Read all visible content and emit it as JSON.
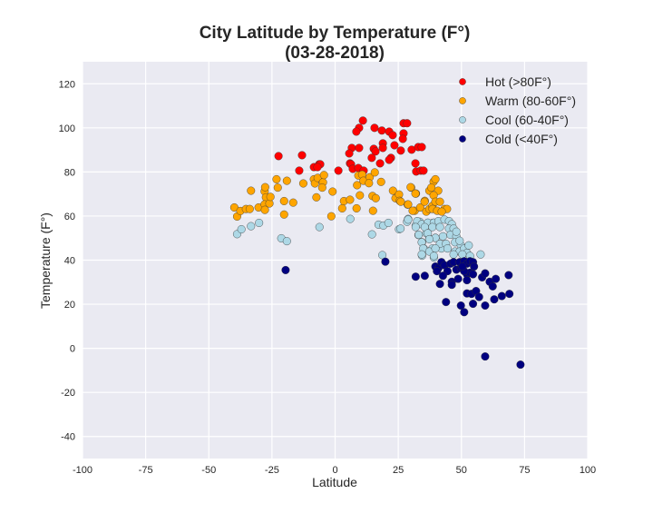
{
  "chart_data": {
    "type": "scatter",
    "title": "City Latitude by Temperature (F°)",
    "subtitle": "(03-28-2018)",
    "xlabel": "Latitude",
    "ylabel": "Temperature (F°)",
    "xlim": [
      -100,
      100
    ],
    "ylim": [
      -50,
      130
    ],
    "xticks": [
      -100,
      -75,
      -50,
      -25,
      0,
      25,
      50,
      75,
      100
    ],
    "yticks": [
      -40,
      -20,
      0,
      20,
      40,
      60,
      80,
      100,
      120
    ],
    "grid": true,
    "legend_position": "top-right",
    "series": [
      {
        "name": "Hot (>80F°)",
        "color": "#FF0000",
        "points": [
          [
            11.0,
            103.3
          ],
          [
            9.5,
            100.0
          ],
          [
            8.4,
            98.3
          ],
          [
            15.6,
            100.0
          ],
          [
            18.5,
            98.8
          ],
          [
            21.4,
            98.3
          ],
          [
            22.8,
            96.7
          ],
          [
            27.1,
            102.1
          ],
          [
            28.5,
            102.1
          ],
          [
            27.1,
            97.5
          ],
          [
            26.8,
            95.0
          ],
          [
            18.9,
            93.0
          ],
          [
            18.9,
            90.9
          ],
          [
            15.3,
            90.5
          ],
          [
            16.0,
            89.3
          ],
          [
            23.5,
            92.1
          ],
          [
            26.0,
            89.7
          ],
          [
            30.3,
            90.1
          ],
          [
            32.9,
            91.3
          ],
          [
            34.3,
            91.3
          ],
          [
            22.1,
            86.4
          ],
          [
            21.4,
            85.5
          ],
          [
            17.8,
            83.9
          ],
          [
            14.5,
            86.4
          ],
          [
            6.6,
            90.9
          ],
          [
            5.6,
            88.4
          ],
          [
            9.5,
            90.9
          ],
          [
            5.9,
            83.9
          ],
          [
            6.3,
            83.5
          ],
          [
            7.0,
            81.4
          ],
          [
            9.2,
            81.8
          ],
          [
            11.3,
            80.6
          ],
          [
            1.3,
            80.6
          ],
          [
            -6.3,
            83.5
          ],
          [
            -5.9,
            83.5
          ],
          [
            -8.4,
            82.2
          ],
          [
            -7.0,
            82.2
          ],
          [
            -14.2,
            80.6
          ],
          [
            -13.1,
            87.6
          ],
          [
            -22.4,
            87.2
          ],
          [
            31.8,
            83.9
          ],
          [
            32.1,
            80.2
          ],
          [
            33.9,
            80.6
          ],
          [
            35.0,
            80.6
          ]
        ]
      },
      {
        "name": "Warm (80-60F°)",
        "color": "#FFA500",
        "points": [
          [
            -39.9,
            63.9
          ],
          [
            -38.8,
            59.8
          ],
          [
            -37.5,
            62.3
          ],
          [
            -35.3,
            63.2
          ],
          [
            -33.8,
            63.2
          ],
          [
            -33.3,
            71.5
          ],
          [
            -30.3,
            63.9
          ],
          [
            -27.9,
            71.2
          ],
          [
            -27.7,
            73.1
          ],
          [
            -27.4,
            68.5
          ],
          [
            -27.9,
            65.3
          ],
          [
            -27.8,
            62.8
          ],
          [
            -26.0,
            65.7
          ],
          [
            -25.6,
            68.7
          ],
          [
            -23.2,
            76.7
          ],
          [
            -22.7,
            72.9
          ],
          [
            -20.2,
            66.8
          ],
          [
            -20.2,
            60.7
          ],
          [
            -19.1,
            76.0
          ],
          [
            -16.6,
            66.1
          ],
          [
            -12.6,
            74.8
          ],
          [
            -8.4,
            76.7
          ],
          [
            -8.0,
            74.8
          ],
          [
            -6.9,
            77.3
          ],
          [
            -4.8,
            75.3
          ],
          [
            -4.4,
            78.6
          ],
          [
            -5.1,
            72.9
          ],
          [
            -7.4,
            68.5
          ],
          [
            -1.0,
            71.1
          ],
          [
            -1.5,
            59.9
          ],
          [
            2.8,
            63.5
          ],
          [
            3.5,
            66.8
          ],
          [
            5.9,
            67.4
          ],
          [
            8.5,
            63.5
          ],
          [
            8.7,
            74.0
          ],
          [
            9.2,
            78.4
          ],
          [
            9.8,
            69.4
          ],
          [
            10.7,
            78.8
          ],
          [
            11.2,
            76.0
          ],
          [
            13.7,
            77.6
          ],
          [
            13.4,
            74.9
          ],
          [
            15.0,
            62.4
          ],
          [
            14.8,
            69.1
          ],
          [
            16.1,
            68.1
          ],
          [
            15.7,
            79.8
          ],
          [
            18.2,
            75.5
          ],
          [
            22.9,
            71.5
          ],
          [
            23.9,
            68.1
          ],
          [
            25.3,
            69.8
          ],
          [
            25.6,
            66.9
          ],
          [
            28.7,
            65.2
          ],
          [
            30.1,
            72.9
          ],
          [
            32.0,
            70.2
          ],
          [
            31.5,
            62.4
          ],
          [
            33.7,
            63.9
          ],
          [
            35.5,
            66.9
          ],
          [
            36.1,
            62.0
          ],
          [
            37.3,
            63.2
          ],
          [
            38.5,
            64.6
          ],
          [
            37.3,
            71.5
          ],
          [
            39.0,
            75.6
          ],
          [
            39.7,
            76.7
          ],
          [
            38.1,
            72.9
          ],
          [
            29.9,
            73.1
          ],
          [
            31.8,
            70.2
          ],
          [
            40.8,
            71.5
          ],
          [
            39.0,
            69.4
          ],
          [
            39.7,
            66.5
          ],
          [
            35.4,
            66.5
          ],
          [
            41.5,
            66.5
          ],
          [
            28.9,
            65.3
          ],
          [
            38.6,
            63.2
          ],
          [
            40.4,
            62.4
          ],
          [
            43.3,
            63.2
          ],
          [
            44.3,
            63.2
          ],
          [
            30.7,
            62.4
          ],
          [
            42.2,
            62.0
          ],
          [
            26.0,
            66.5
          ]
        ]
      },
      {
        "name": "Cool (60-40F°)",
        "color": "#ADD8E6",
        "points": [
          [
            -38.8,
            51.8
          ],
          [
            -37.1,
            54.0
          ],
          [
            -33.3,
            55.4
          ],
          [
            -30.1,
            56.9
          ],
          [
            -21.3,
            49.9
          ],
          [
            -19.1,
            48.6
          ],
          [
            -6.2,
            55.0
          ],
          [
            6.0,
            58.7
          ],
          [
            14.6,
            51.7
          ],
          [
            17.2,
            56.1
          ],
          [
            19.1,
            55.7
          ],
          [
            21.1,
            56.9
          ],
          [
            25.3,
            54.0
          ],
          [
            18.7,
            42.3
          ],
          [
            28.5,
            57.4
          ],
          [
            28.9,
            58.7
          ],
          [
            31.9,
            55.7
          ],
          [
            33.5,
            57.4
          ],
          [
            36.1,
            56.3
          ],
          [
            38.7,
            56.9
          ],
          [
            33.0,
            51.4
          ],
          [
            34.4,
            48.1
          ],
          [
            36.1,
            52.2
          ],
          [
            37.3,
            49.7
          ],
          [
            39.7,
            50.1
          ],
          [
            35.1,
            45.3
          ],
          [
            38.5,
            45.3
          ],
          [
            34.4,
            42.0
          ],
          [
            39.1,
            41.2
          ],
          [
            42.1,
            45.3
          ],
          [
            28.9,
            58.4
          ],
          [
            32.5,
            57.7
          ],
          [
            34.3,
            56.3
          ],
          [
            36.7,
            57.0
          ],
          [
            39.1,
            57.0
          ],
          [
            40.9,
            57.7
          ],
          [
            43.3,
            58.4
          ],
          [
            45.1,
            57.7
          ],
          [
            46.2,
            56.3
          ],
          [
            31.9,
            55.0
          ],
          [
            35.5,
            55.0
          ],
          [
            38.5,
            55.0
          ],
          [
            41.5,
            55.0
          ],
          [
            45.1,
            54.3
          ],
          [
            46.9,
            54.3
          ],
          [
            33.1,
            51.5
          ],
          [
            36.7,
            52.2
          ],
          [
            39.7,
            50.1
          ],
          [
            42.7,
            50.8
          ],
          [
            45.7,
            51.5
          ],
          [
            48.0,
            50.8
          ],
          [
            34.3,
            48.1
          ],
          [
            37.3,
            49.5
          ],
          [
            41.5,
            47.4
          ],
          [
            43.9,
            47.4
          ],
          [
            47.5,
            48.1
          ],
          [
            49.8,
            46.7
          ],
          [
            34.9,
            45.3
          ],
          [
            37.3,
            43.9
          ],
          [
            39.7,
            45.3
          ],
          [
            44.5,
            45.3
          ],
          [
            47.5,
            43.9
          ],
          [
            49.3,
            43.9
          ],
          [
            51.1,
            45.3
          ],
          [
            52.2,
            43.3
          ],
          [
            34.3,
            42.6
          ],
          [
            39.1,
            41.9
          ],
          [
            46.9,
            42.6
          ],
          [
            50.4,
            42.6
          ],
          [
            53.4,
            41.9
          ],
          [
            57.6,
            42.6
          ],
          [
            25.9,
            54.3
          ],
          [
            48.0,
            52.9
          ],
          [
            49.3,
            48.8
          ],
          [
            52.9,
            46.7
          ]
        ]
      },
      {
        "name": "Cold (<40F°)",
        "color": "#000080",
        "points": [
          [
            -19.6,
            35.5
          ],
          [
            19.9,
            39.3
          ],
          [
            31.9,
            32.5
          ],
          [
            35.5,
            32.9
          ],
          [
            41.5,
            29.2
          ],
          [
            43.9,
            21.0
          ],
          [
            46.2,
            30.2
          ],
          [
            46.2,
            28.8
          ],
          [
            49.8,
            19.4
          ],
          [
            51.1,
            16.4
          ],
          [
            52.2,
            24.9
          ],
          [
            54.6,
            20.2
          ],
          [
            54.0,
            24.7
          ],
          [
            55.8,
            26.0
          ],
          [
            57.0,
            23.3
          ],
          [
            58.2,
            32.2
          ],
          [
            59.4,
            34.0
          ],
          [
            59.4,
            19.4
          ],
          [
            61.2,
            30.2
          ],
          [
            62.4,
            28.1
          ],
          [
            63.6,
            31.5
          ],
          [
            63.0,
            22.2
          ],
          [
            66.0,
            23.7
          ],
          [
            68.7,
            33.2
          ],
          [
            69.0,
            24.7
          ],
          [
            39.7,
            37.1
          ],
          [
            40.9,
            36.4
          ],
          [
            42.1,
            39.1
          ],
          [
            43.3,
            37.7
          ],
          [
            44.5,
            35.0
          ],
          [
            42.7,
            32.9
          ],
          [
            45.7,
            38.4
          ],
          [
            46.9,
            39.1
          ],
          [
            48.0,
            35.7
          ],
          [
            49.3,
            39.1
          ],
          [
            49.8,
            36.4
          ],
          [
            51.1,
            39.5
          ],
          [
            52.2,
            38.4
          ],
          [
            53.4,
            39.5
          ],
          [
            54.6,
            39.1
          ],
          [
            55.0,
            37.1
          ],
          [
            52.2,
            33.6
          ],
          [
            53.4,
            34.3
          ],
          [
            51.1,
            35.0
          ],
          [
            48.7,
            31.5
          ],
          [
            52.2,
            30.9
          ],
          [
            54.6,
            33.6
          ],
          [
            40.3,
            35.0
          ],
          [
            50.4,
            37.1
          ],
          [
            59.4,
            -3.7
          ],
          [
            73.4,
            -7.4
          ]
        ]
      }
    ]
  }
}
